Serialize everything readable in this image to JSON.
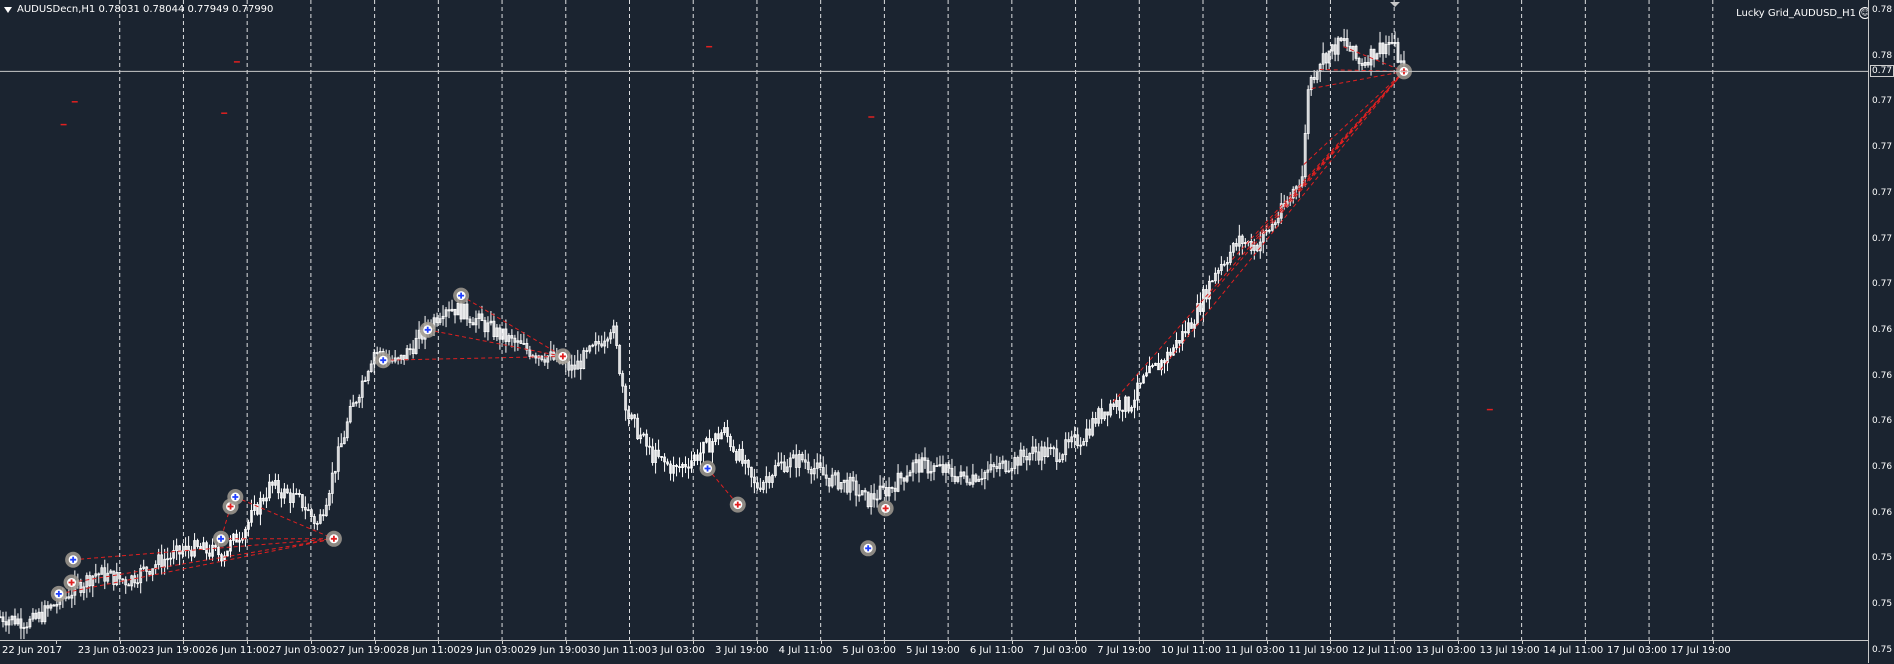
{
  "chart_header": {
    "symbol_text": "AUDUSDecn,H1  0.78031 0.78044 0.77949 0.77990"
  },
  "ea_label": {
    "text": "Lucky Grid_AUDUSD_H1"
  },
  "colors": {
    "background": "#1b2430",
    "candles": "#ffffff",
    "grid": "#ffffff",
    "trade_lines": "#e02020",
    "trade_marker_ring": "#a09a90",
    "buy_arrow": "#2040ff",
    "sell_arrow": "#e02020"
  },
  "price_axis": {
    "ticks": [
      "0.78",
      "0.78",
      "0.77",
      "0.77",
      "0.77",
      "0.77",
      "0.77",
      "0.76",
      "0.76",
      "0.76",
      "0.76",
      "0.76",
      "0.75",
      "0.75",
      "0.75"
    ],
    "current_price_label": "0.77"
  },
  "time_axis": {
    "labels": [
      "22 Jun 2017",
      "23 Jun 03:00",
      "23 Jun 19:00",
      "26 Jun 11:00",
      "27 Jun 03:00",
      "27 Jun 19:00",
      "28 Jun 11:00",
      "29 Jun 03:00",
      "29 Jun 19:00",
      "30 Jun 11:00",
      "3 Jul 03:00",
      "3 Jul 19:00",
      "4 Jul 11:00",
      "5 Jul 03:00",
      "5 Jul 19:00",
      "6 Jul 11:00",
      "7 Jul 03:00",
      "7 Jul 19:00",
      "10 Jul 11:00",
      "11 Jul 03:00",
      "11 Jul 19:00",
      "12 Jul 11:00",
      "13 Jul 03:00",
      "13 Jul 19:00",
      "14 Jul 11:00",
      "17 Jul 03:00",
      "17 Jul 19:00"
    ]
  },
  "chart_data": {
    "type": "candlestick",
    "symbol": "AUDUSDecn",
    "timeframe": "H1",
    "last_bar": {
      "open": 0.78031,
      "high": 0.78044,
      "low": 0.77949,
      "close": 0.7799
    },
    "x_range": [
      "22 Jun 2017",
      "17 Jul 19:00"
    ],
    "y_range": [
      0.7505,
      0.7825
    ],
    "current_price": 0.7799,
    "grid": "vertical dashed",
    "close_path": [
      [
        0,
        0.7512
      ],
      [
        0.02,
        0.7509
      ],
      [
        0.04,
        0.7522
      ],
      [
        0.06,
        0.7535
      ],
      [
        0.08,
        0.7531
      ],
      [
        0.1,
        0.7541
      ],
      [
        0.12,
        0.7548
      ],
      [
        0.14,
        0.7545
      ],
      [
        0.155,
        0.756
      ],
      [
        0.17,
        0.7581
      ],
      [
        0.19,
        0.7572
      ],
      [
        0.2,
        0.756
      ],
      [
        0.22,
        0.7618
      ],
      [
        0.235,
        0.7652
      ],
      [
        0.25,
        0.7645
      ],
      [
        0.265,
        0.766
      ],
      [
        0.28,
        0.7676
      ],
      [
        0.29,
        0.7673
      ],
      [
        0.3,
        0.7668
      ],
      [
        0.315,
        0.766
      ],
      [
        0.33,
        0.7653
      ],
      [
        0.345,
        0.7649
      ],
      [
        0.36,
        0.7642
      ],
      [
        0.375,
        0.7654
      ],
      [
        0.385,
        0.7666
      ],
      [
        0.395,
        0.7618
      ],
      [
        0.41,
        0.7597
      ],
      [
        0.425,
        0.7589
      ],
      [
        0.44,
        0.7598
      ],
      [
        0.455,
        0.761
      ],
      [
        0.465,
        0.7596
      ],
      [
        0.475,
        0.758
      ],
      [
        0.49,
        0.7592
      ],
      [
        0.505,
        0.7595
      ],
      [
        0.52,
        0.7585
      ],
      [
        0.535,
        0.7581
      ],
      [
        0.545,
        0.7573
      ],
      [
        0.56,
        0.758
      ],
      [
        0.575,
        0.7592
      ],
      [
        0.59,
        0.759
      ],
      [
        0.605,
        0.7585
      ],
      [
        0.62,
        0.7588
      ],
      [
        0.635,
        0.7593
      ],
      [
        0.65,
        0.7599
      ],
      [
        0.665,
        0.7598
      ],
      [
        0.68,
        0.7606
      ],
      [
        0.69,
        0.7617
      ],
      [
        0.7,
        0.7625
      ],
      [
        0.71,
        0.7623
      ],
      [
        0.72,
        0.7637
      ],
      [
        0.735,
        0.765
      ],
      [
        0.75,
        0.7668
      ],
      [
        0.765,
        0.7695
      ],
      [
        0.78,
        0.771
      ],
      [
        0.79,
        0.7707
      ],
      [
        0.8,
        0.7718
      ],
      [
        0.81,
        0.773
      ],
      [
        0.815,
        0.774
      ],
      [
        0.82,
        0.7745
      ],
      [
        0.822,
        0.779
      ],
      [
        0.83,
        0.7805
      ],
      [
        0.845,
        0.7815
      ],
      [
        0.855,
        0.7803
      ],
      [
        0.865,
        0.781
      ],
      [
        0.875,
        0.7815
      ],
      [
        0.883,
        0.7799
      ]
    ],
    "trade_markers": [
      {
        "type": "buy",
        "x": 0.037,
        "y": 0.7524
      },
      {
        "type": "sell",
        "x": 0.045,
        "y": 0.753
      },
      {
        "type": "buy",
        "x": 0.046,
        "y": 0.7542
      },
      {
        "type": "buy",
        "x": 0.139,
        "y": 0.7553
      },
      {
        "type": "sell",
        "x": 0.145,
        "y": 0.757
      },
      {
        "type": "buy",
        "x": 0.148,
        "y": 0.7575
      },
      {
        "type": "sell",
        "x": 0.21,
        "y": 0.7553
      },
      {
        "type": "buy",
        "x": 0.241,
        "y": 0.7647
      },
      {
        "type": "buy",
        "x": 0.269,
        "y": 0.7663
      },
      {
        "type": "buy",
        "x": 0.29,
        "y": 0.7681
      },
      {
        "type": "sell",
        "x": 0.354,
        "y": 0.7649
      },
      {
        "type": "buy",
        "x": 0.445,
        "y": 0.759
      },
      {
        "type": "sell",
        "x": 0.464,
        "y": 0.7571
      },
      {
        "type": "buy",
        "x": 0.546,
        "y": 0.7548
      },
      {
        "type": "sell",
        "x": 0.557,
        "y": 0.7569
      },
      {
        "type": "sell",
        "x": 0.883,
        "y": 0.7799
      }
    ],
    "trade_lines": [
      [
        0.037,
        0.7524,
        0.21,
        0.7553
      ],
      [
        0.045,
        0.753,
        0.21,
        0.7553
      ],
      [
        0.046,
        0.7542,
        0.21,
        0.7553
      ],
      [
        0.139,
        0.7553,
        0.21,
        0.7553
      ],
      [
        0.148,
        0.7575,
        0.21,
        0.7553
      ],
      [
        0.145,
        0.757,
        0.139,
        0.7553
      ],
      [
        0.241,
        0.7647,
        0.354,
        0.7649
      ],
      [
        0.269,
        0.7663,
        0.354,
        0.7649
      ],
      [
        0.29,
        0.7681,
        0.354,
        0.7649
      ],
      [
        0.445,
        0.759,
        0.464,
        0.7571
      ],
      [
        0.7,
        0.7625,
        0.883,
        0.7799
      ],
      [
        0.73,
        0.7642,
        0.883,
        0.7799
      ],
      [
        0.76,
        0.768,
        0.883,
        0.7799
      ],
      [
        0.775,
        0.77,
        0.883,
        0.7799
      ],
      [
        0.79,
        0.7712,
        0.883,
        0.7799
      ],
      [
        0.805,
        0.7725,
        0.883,
        0.7799
      ],
      [
        0.82,
        0.775,
        0.883,
        0.7799
      ],
      [
        0.825,
        0.779,
        0.883,
        0.7799
      ],
      [
        0.83,
        0.78,
        0.883,
        0.7799
      ],
      [
        0.845,
        0.7812,
        0.883,
        0.7799
      ]
    ],
    "stray_markers": [
      {
        "x": 0.149,
        "y": 0.7804
      },
      {
        "x": 0.047,
        "y": 0.7783
      },
      {
        "x": 0.04,
        "y": 0.7771
      },
      {
        "x": 0.141,
        "y": 0.7777
      },
      {
        "x": 0.446,
        "y": 0.7812
      },
      {
        "x": 0.548,
        "y": 0.7775
      },
      {
        "x": 0.937,
        "y": 0.7621
      }
    ]
  }
}
